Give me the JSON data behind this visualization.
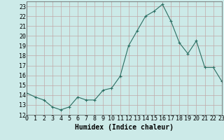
{
  "x": [
    0,
    1,
    2,
    3,
    4,
    5,
    6,
    7,
    8,
    9,
    10,
    11,
    12,
    13,
    14,
    15,
    16,
    17,
    18,
    19,
    20,
    21,
    22,
    23
  ],
  "y": [
    14.2,
    13.8,
    13.5,
    12.8,
    12.5,
    12.8,
    13.8,
    13.5,
    13.5,
    14.5,
    14.7,
    15.9,
    19.0,
    20.5,
    22.0,
    22.5,
    23.2,
    21.5,
    19.3,
    18.2,
    19.5,
    16.8,
    16.8,
    15.4
  ],
  "xlabel": "Humidex (Indice chaleur)",
  "ylim": [
    12,
    23.5
  ],
  "xlim": [
    0,
    23
  ],
  "yticks": [
    12,
    13,
    14,
    15,
    16,
    17,
    18,
    19,
    20,
    21,
    22,
    23
  ],
  "xticks": [
    0,
    1,
    2,
    3,
    4,
    5,
    6,
    7,
    8,
    9,
    10,
    11,
    12,
    13,
    14,
    15,
    16,
    17,
    18,
    19,
    20,
    21,
    22,
    23
  ],
  "line_color": "#2a6e62",
  "marker_color": "#2a6e62",
  "bg_color": "#cceae8",
  "grid_color_major": "#c0a8a8",
  "xlabel_fontsize": 7,
  "tick_fontsize": 6
}
